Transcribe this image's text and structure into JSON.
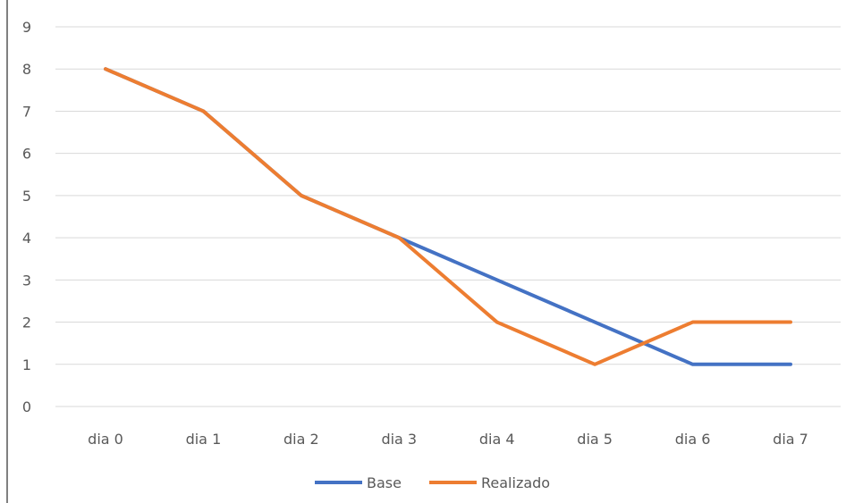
{
  "chart_data": {
    "type": "line",
    "categories": [
      "dia 0",
      "dia 1",
      "dia 2",
      "dia 3",
      "dia 4",
      "dia 5",
      "dia 6",
      "dia 7"
    ],
    "series": [
      {
        "name": "Base",
        "values": [
          8,
          7,
          5,
          4,
          3,
          2,
          1,
          1
        ],
        "color": "#4472c4"
      },
      {
        "name": "Realizado",
        "values": [
          8,
          7,
          5,
          4,
          2,
          1,
          2,
          2
        ],
        "color": "#ed7d31"
      }
    ],
    "ylim": [
      0,
      9
    ],
    "yticks": [
      "0",
      "1",
      "2",
      "3",
      "4",
      "5",
      "6",
      "7",
      "8",
      "9"
    ],
    "title": "",
    "xlabel": "",
    "ylabel": "",
    "grid": true,
    "legend": "bottom",
    "colors": {
      "grid": "#d9d9d9",
      "axis_border": "#000000",
      "text": "#595959"
    }
  }
}
